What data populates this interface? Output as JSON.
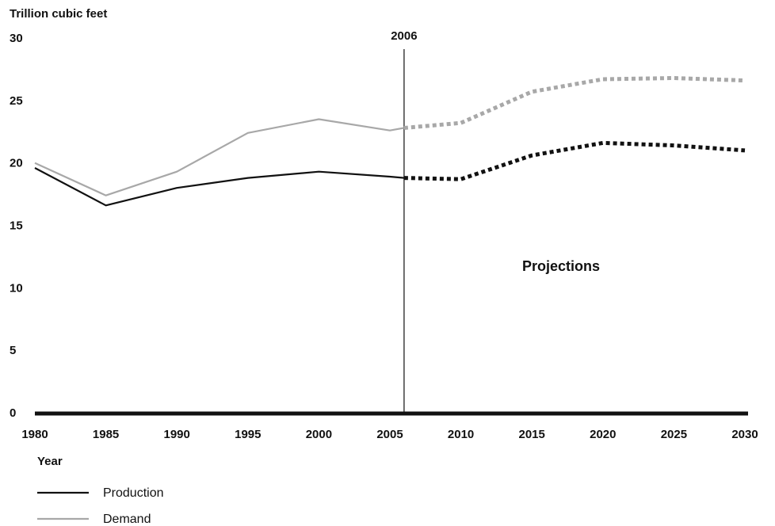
{
  "chart_data": {
    "type": "line",
    "title": "",
    "ylabel": "Trillion cubic feet",
    "xlabel": "Year",
    "ylim": [
      0,
      30
    ],
    "xlim": [
      1980,
      2030
    ],
    "yticks": [
      0,
      5,
      10,
      15,
      20,
      25,
      30
    ],
    "xticks": [
      1980,
      1985,
      1990,
      1995,
      2000,
      2005,
      2010,
      2015,
      2020,
      2025,
      2030
    ],
    "divider": {
      "x": 2006,
      "label": "2006"
    },
    "annotation": "Projections",
    "historical_end": 2006,
    "series": [
      {
        "name": "Production",
        "color": "#111111",
        "points": [
          [
            1980,
            19.6
          ],
          [
            1985,
            16.6
          ],
          [
            1990,
            18.0
          ],
          [
            1995,
            18.8
          ],
          [
            2000,
            19.3
          ],
          [
            2005,
            18.9
          ],
          [
            2006,
            18.8
          ],
          [
            2010,
            18.7
          ],
          [
            2015,
            20.6
          ],
          [
            2020,
            21.6
          ],
          [
            2025,
            21.4
          ],
          [
            2030,
            21.0
          ]
        ]
      },
      {
        "name": "Demand",
        "color": "#a8a8a8",
        "points": [
          [
            1980,
            20.0
          ],
          [
            1985,
            17.4
          ],
          [
            1990,
            19.3
          ],
          [
            1995,
            22.4
          ],
          [
            2000,
            23.5
          ],
          [
            2005,
            22.6
          ],
          [
            2006,
            22.8
          ],
          [
            2010,
            23.2
          ],
          [
            2015,
            25.7
          ],
          [
            2020,
            26.7
          ],
          [
            2025,
            26.8
          ],
          [
            2030,
            26.6
          ]
        ]
      }
    ],
    "legend": {
      "placement": "bottom-left"
    }
  }
}
